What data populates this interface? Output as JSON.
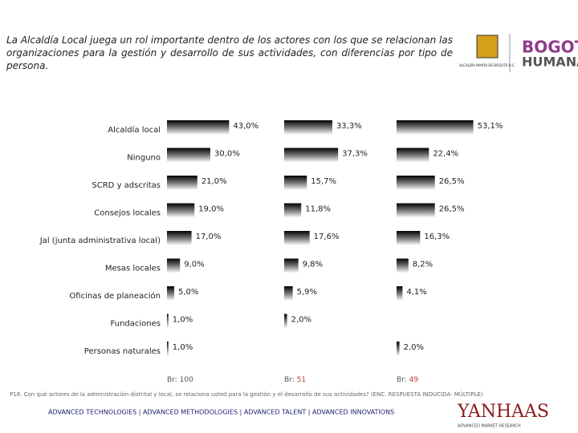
{
  "header": {
    "text": "La Alcaldía Local juega un rol importante dentro de los actores con los que se relacionan las organizaciones para la gestión y desarrollo de sus actividades, con diferencias por tipo de persona."
  },
  "logos": {
    "alcaldia": "ALCALDÍA MAYOR DE BOGOTÁ D.C.",
    "bogota": "BOGOTÁ",
    "humana": "HUMANA",
    "yanhaas": "YANHAAS",
    "yanhaas_sub": "ADVANCED MARKET RESEARCH"
  },
  "chart_data": {
    "type": "hbar",
    "categories": [
      "Alcaldía local",
      "Ninguno",
      "SCRD y adscritas",
      "Consejos locales",
      "Jal (junta administrativa local)",
      "Mesas locales",
      "Oficinas de planeación",
      "Fundaciones",
      "Personas naturales"
    ],
    "xlim": [
      0,
      100
    ],
    "series": [
      {
        "base_label": "Br:",
        "base": 100,
        "base_color": "#555555",
        "values": [
          43.0,
          30.0,
          21.0,
          19.0,
          17.0,
          9.0,
          5.0,
          1.0,
          1.0
        ],
        "value_labels": [
          "43,0%",
          "30,0%",
          "21,0%",
          "19,0%",
          "17,0%",
          "9,0%",
          "5,0%",
          "1,0%",
          "1,0%"
        ]
      },
      {
        "base_label": "Br:",
        "base": 51,
        "base_color": "#c0392b",
        "values": [
          33.3,
          37.3,
          15.7,
          11.8,
          17.6,
          9.8,
          5.9,
          2.0,
          null
        ],
        "value_labels": [
          "33,3%",
          "37,3%",
          "15,7%",
          "11,8%",
          "17,6%",
          "9,8%",
          "5,9%",
          "2,0%",
          null
        ]
      },
      {
        "base_label": "Br:",
        "base": 49,
        "base_color": "#c0392b",
        "values": [
          53.1,
          22.4,
          26.5,
          26.5,
          16.3,
          8.2,
          4.1,
          null,
          2.0
        ],
        "value_labels": [
          "53,1%",
          "22,4%",
          "26,5%",
          "26,5%",
          "16,3%",
          "8,2%",
          "4,1%",
          null,
          "2,0%"
        ]
      }
    ]
  },
  "footnote": "P18. Con qué actores de la administración distrital y local, se relaciona usted para la gestión y el desarrollo de sus actividades? (ENC. RESPUESTA INDUCIDA- MÚLTIPLE)",
  "footer": "ADVANCED TECHNOLOGIES | ADVANCED METHODOLOGIES | ADVANCED TALENT | ADVANCED INNOVATIONS"
}
